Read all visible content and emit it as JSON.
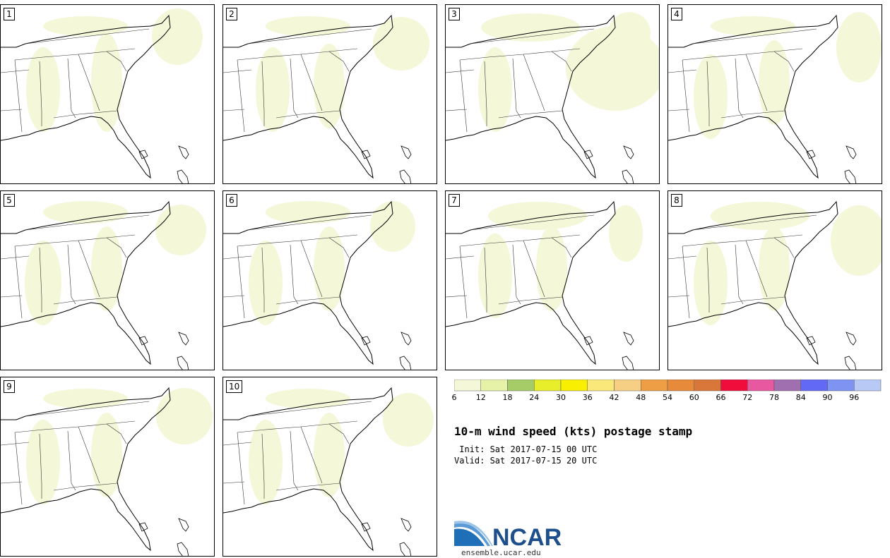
{
  "panels": [
    {
      "label": "1"
    },
    {
      "label": "2"
    },
    {
      "label": "3"
    },
    {
      "label": "4"
    },
    {
      "label": "5"
    },
    {
      "label": "6"
    },
    {
      "label": "7"
    },
    {
      "label": "8"
    },
    {
      "label": "9"
    },
    {
      "label": "10"
    }
  ],
  "colorbar": {
    "ticks": [
      "6",
      "12",
      "18",
      "24",
      "30",
      "36",
      "42",
      "48",
      "54",
      "60",
      "66",
      "72",
      "78",
      "84",
      "90",
      "96"
    ],
    "colors": [
      "#f4f7d8",
      "#e5f2a8",
      "#a6cc67",
      "#e8ee2a",
      "#f8f000",
      "#fbe87a",
      "#f6cf85",
      "#ee9f45",
      "#e78a3a",
      "#d9773a",
      "#f00d3c",
      "#e758a1",
      "#a06fb0",
      "#6269f5",
      "#7f93f2",
      "#b9c9f6"
    ]
  },
  "title": "10-m wind speed (kts) postage stamp",
  "init": " Init: Sat 2017-07-15 00 UTC",
  "valid": "Valid: Sat 2017-07-15 20 UTC",
  "logo": {
    "text": "NCAR",
    "url": "ensemble.ucar.edu",
    "color": "#1d4f8c"
  }
}
